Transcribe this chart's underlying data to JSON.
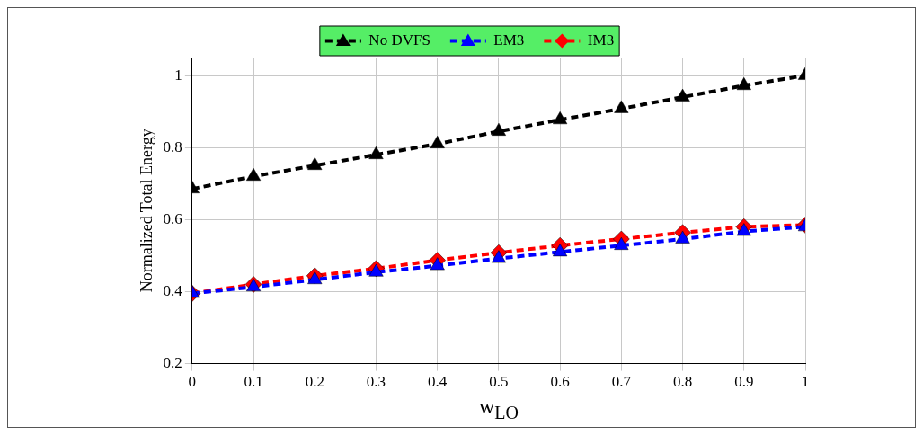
{
  "chart_data": {
    "type": "line",
    "xlabel": "w$_{LO}$",
    "ylabel": "Normalized Total Energy",
    "x": [
      0,
      0.1,
      0.2,
      0.3,
      0.4,
      0.5,
      0.6,
      0.7,
      0.8,
      0.9,
      1
    ],
    "series": [
      {
        "name": "No DVFS",
        "color": "#000000",
        "marker": "triangle",
        "values": [
          0.685,
          0.72,
          0.75,
          0.78,
          0.81,
          0.845,
          0.877,
          0.908,
          0.94,
          0.972,
          1.0
        ]
      },
      {
        "name": "EM3",
        "color": "#0000ff",
        "marker": "triangle",
        "values": [
          0.395,
          0.413,
          0.433,
          0.454,
          0.472,
          0.492,
          0.51,
          0.528,
          0.546,
          0.567,
          0.58
        ]
      },
      {
        "name": "IM3",
        "color": "#ff0000",
        "marker": "diamond",
        "values": [
          0.395,
          0.42,
          0.444,
          0.464,
          0.487,
          0.508,
          0.528,
          0.546,
          0.564,
          0.58,
          0.585
        ]
      }
    ],
    "xlim": [
      0,
      1
    ],
    "xticks": [
      0,
      0.1,
      0.2,
      0.3,
      0.4,
      0.5,
      0.6,
      0.7,
      0.8,
      0.9,
      1
    ],
    "ylim": [
      0.2,
      1.05
    ],
    "yticks": [
      0.2,
      0.4,
      0.6,
      0.8,
      1
    ],
    "grid": true,
    "legend": "top",
    "line_style": "dashed"
  }
}
